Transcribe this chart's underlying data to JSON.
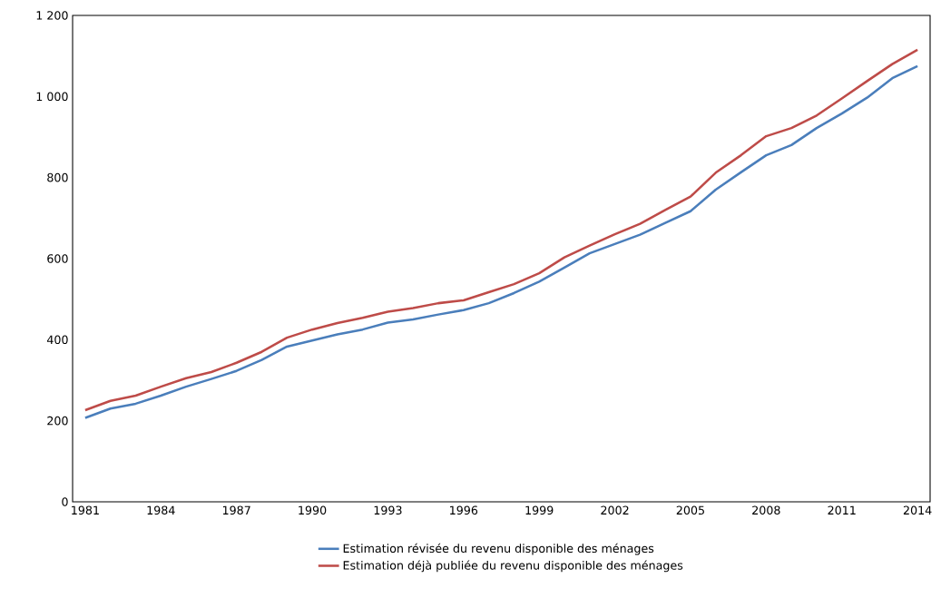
{
  "chart_data": {
    "type": "line",
    "x": [
      1981,
      1982,
      1983,
      1984,
      1985,
      1986,
      1987,
      1988,
      1989,
      1990,
      1991,
      1992,
      1993,
      1994,
      1995,
      1996,
      1997,
      1998,
      1999,
      2000,
      2001,
      2002,
      2003,
      2004,
      2005,
      2006,
      2007,
      2008,
      2009,
      2010,
      2011,
      2012,
      2013,
      2014
    ],
    "series": [
      {
        "name": "Estimation révisée du revenu disponible des ménages",
        "color": "#4a7ebb",
        "values": [
          207,
          230,
          242,
          262,
          284,
          303,
          323,
          350,
          383,
          398,
          413,
          425,
          442,
          450,
          462,
          473,
          490,
          515,
          543,
          578,
          613,
          636,
          659,
          688,
          717,
          770,
          813,
          855,
          880,
          922,
          958,
          997,
          1045,
          1075
        ]
      },
      {
        "name": "Estimation déjà publiée du revenu disponible des ménages",
        "color": "#be4b48",
        "values": [
          226,
          249,
          262,
          284,
          305,
          320,
          343,
          370,
          405,
          425,
          441,
          454,
          469,
          478,
          490,
          497,
          517,
          537,
          564,
          603,
          632,
          660,
          686,
          720,
          753,
          812,
          855,
          902,
          922,
          953,
          995,
          1038,
          1080,
          1115
        ]
      }
    ],
    "xlim": [
      1980.5,
      2014.5
    ],
    "xticks": [
      1981,
      1984,
      1987,
      1990,
      1993,
      1996,
      1999,
      2002,
      2005,
      2008,
      2011,
      2014
    ],
    "ylim": [
      0,
      1200
    ],
    "yticks": [
      0,
      200,
      400,
      600,
      800,
      {
        "value": 1000,
        "label": "1 000"
      },
      {
        "value": 1200,
        "label": "1 200"
      }
    ],
    "grid": false,
    "legend": "bottom",
    "marker": "none",
    "line_style": "solid"
  }
}
